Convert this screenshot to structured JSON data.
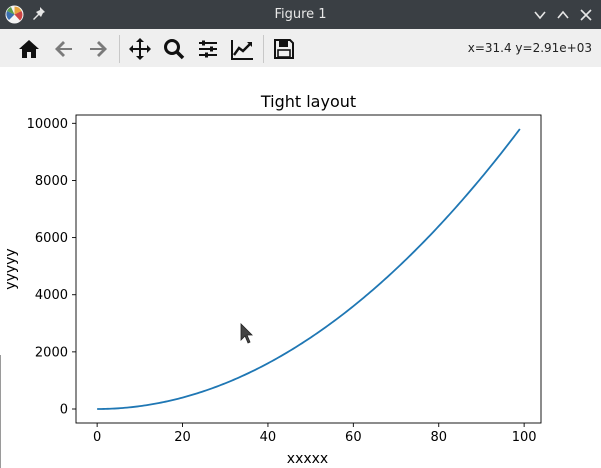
{
  "window": {
    "title": "Figure 1",
    "controls": [
      "chevron-down-icon",
      "chevron-up-icon",
      "close-icon"
    ]
  },
  "toolbar": {
    "tools": [
      "home-icon",
      "back-arrow-icon",
      "forward-arrow-icon",
      "pan-move-icon",
      "zoom-magnifier-icon",
      "configure-subplots-icon",
      "edit-axis-icon",
      "save-floppy-icon"
    ],
    "coordinates": "x=31.4 y=2.91e+03"
  },
  "colors": {
    "line": "#1f77b4",
    "titlebar": "#3a3f44",
    "toolbar": "#efefef"
  },
  "chart_data": {
    "type": "line",
    "title": "Tight layout",
    "xlabel": "xxxxx",
    "ylabel": "yyyyy",
    "xlim": [
      -4.95,
      103.95
    ],
    "ylim": [
      -490.05,
      10291.05
    ],
    "xticks": [
      0,
      20,
      40,
      60,
      80,
      100
    ],
    "yticks": [
      0,
      2000,
      4000,
      6000,
      8000,
      10000
    ],
    "xtick_labels": [
      "0",
      "20",
      "40",
      "60",
      "80",
      "100"
    ],
    "ytick_labels": [
      "0",
      "2000",
      "4000",
      "6000",
      "8000",
      "10000"
    ],
    "series": [
      {
        "x": [
          0,
          10,
          20,
          30,
          40,
          50,
          60,
          70,
          80,
          90,
          99
        ],
        "y": [
          0,
          100,
          400,
          900,
          1600,
          2500,
          3600,
          4900,
          6400,
          8100,
          9801
        ]
      }
    ],
    "grid": false,
    "legend": "none"
  }
}
